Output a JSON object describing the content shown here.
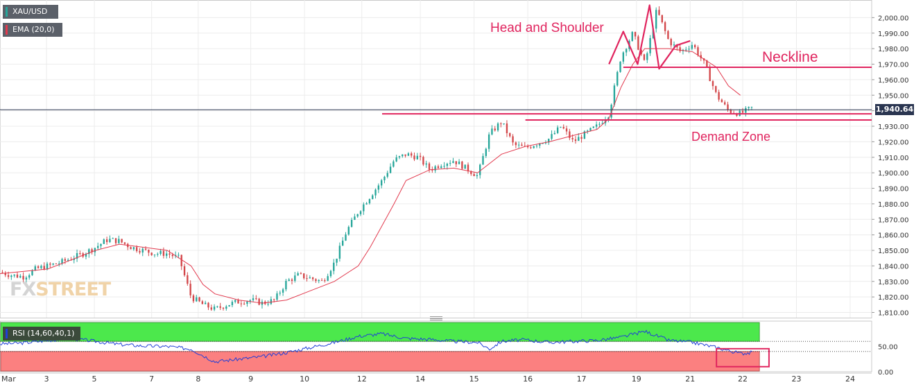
{
  "window": {
    "symbol_label": "XAU/USD",
    "ema_label": "EMA (20,0)",
    "rsi_label": "RSI (14,60,40,1)",
    "current_price_label": "1,940.64",
    "logo_fx": "FX",
    "logo_street": "STREET"
  },
  "colors": {
    "up": "#26a69a",
    "down": "#d3474a",
    "ema": "#e23a4e",
    "annotation": "#e0245e",
    "rsi_line": "#1f3fd8",
    "rsi_upper_zone": "#4ce84c",
    "rsi_lower_zone": "#fb8080",
    "price_line": "#2a3550"
  },
  "annotations": {
    "head_shoulder": "Head and Shoulder",
    "neckline": "Neckline",
    "demand_zone": "Demand Zone"
  },
  "chart_data": [
    {
      "type": "candlestick",
      "title": "XAU/USD",
      "ylim": [
        1808,
        2010
      ],
      "y_ticks": [
        "2,000.00",
        "1,990.00",
        "1,980.00",
        "1,970.00",
        "1,960.00",
        "1,950.00",
        "1,940.00",
        "1,930.00",
        "1,920.00",
        "1,910.00",
        "1,900.00",
        "1,890.00",
        "1,880.00",
        "1,870.00",
        "1,860.00",
        "1,850.00",
        "1,840.00",
        "1,830.00",
        "1,820.00",
        "1,810.00"
      ],
      "y_tick_values": [
        2000,
        1990,
        1980,
        1970,
        1960,
        1950,
        1940,
        1930,
        1920,
        1910,
        1900,
        1890,
        1880,
        1870,
        1860,
        1850,
        1840,
        1830,
        1820,
        1810
      ],
      "x_ticks": [
        "Mar",
        "3",
        "5",
        "7",
        "8",
        "9",
        "10",
        "12",
        "14",
        "15",
        "16",
        "17",
        "19",
        "21",
        "22",
        "23",
        "24"
      ],
      "x_tick_times": [
        0,
        1.95,
        3.95,
        6.35,
        8.3,
        10.5,
        12.75,
        15.15,
        17.6,
        19.85,
        22.1,
        24.35,
        26.65,
        28.9,
        31.1,
        33.35,
        35.6
      ],
      "time_end": 36.5,
      "current_price": 1940.64,
      "key_points": {
        "t": [
          0,
          0.5,
          1,
          1.5,
          2,
          2.5,
          3,
          3.5,
          4,
          4.5,
          5,
          5.5,
          6,
          6.5,
          7,
          7.5,
          8,
          8.5,
          9,
          9.5,
          10,
          10.5,
          11,
          11.5,
          12,
          12.5,
          13,
          13.5,
          14,
          14.5,
          15,
          15.5,
          16,
          16.5,
          17,
          17.5,
          18,
          18.5,
          19,
          19.5,
          20,
          20.5,
          21,
          21.5,
          22,
          22.5,
          23,
          23.5,
          24,
          24.5,
          25,
          25.5,
          26,
          26.5,
          27,
          27.5,
          28,
          28.5,
          29,
          29.5,
          30,
          30.5,
          31,
          31.5
        ],
        "close": [
          1836,
          1834,
          1833,
          1838,
          1840,
          1842,
          1845,
          1848,
          1852,
          1857,
          1856,
          1852,
          1850,
          1848,
          1848,
          1845,
          1820,
          1815,
          1812,
          1815,
          1817,
          1818,
          1816,
          1818,
          1830,
          1834,
          1832,
          1830,
          1842,
          1862,
          1875,
          1885,
          1895,
          1908,
          1912,
          1910,
          1902,
          1906,
          1908,
          1903,
          1898,
          1925,
          1933,
          1918,
          1916,
          1919,
          1922,
          1930,
          1920,
          1925,
          1930,
          1938,
          1975,
          1990,
          1970,
          2005,
          1985,
          1978,
          1983,
          1970,
          1950,
          1940,
          1938,
          1942
        ]
      },
      "ema": {
        "t": [
          0,
          2,
          4,
          5,
          6,
          7,
          8,
          8.5,
          9,
          10,
          11,
          12,
          13,
          14,
          15,
          15.5,
          16,
          16.5,
          17,
          18,
          19,
          20,
          21,
          22,
          23,
          24,
          25,
          25.5,
          26,
          26.5,
          27,
          28,
          29,
          30,
          30.5,
          31
        ],
        "values": [
          1835,
          1838,
          1850,
          1854,
          1852,
          1850,
          1840,
          1828,
          1822,
          1818,
          1816,
          1818,
          1824,
          1830,
          1840,
          1852,
          1866,
          1880,
          1895,
          1902,
          1903,
          1900,
          1912,
          1917,
          1920,
          1924,
          1928,
          1935,
          1955,
          1970,
          1980,
          1980,
          1978,
          1968,
          1956,
          1950
        ]
      },
      "lines": [
        {
          "name": "Neckline",
          "y": 1968,
          "t_start": 26.1,
          "t_end": 36.5
        },
        {
          "name": "Demand Zone upper",
          "y": 1938,
          "t_start": 16.0,
          "t_end": 36.5
        },
        {
          "name": "Demand Zone lower",
          "y": 1934,
          "t_start": 22.0,
          "t_end": 36.5
        }
      ],
      "head_and_shoulder_path": {
        "t": [
          25.5,
          26.1,
          26.7,
          27.2,
          27.6,
          28.3,
          28.9
        ],
        "y": [
          1970,
          1991,
          1970,
          2008,
          1967,
          1982,
          1985
        ]
      }
    },
    {
      "type": "line",
      "title": "RSI (14,60,40,1)",
      "ylim": [
        0,
        100
      ],
      "y_ticks": [
        "50.00",
        "0.00"
      ],
      "y_tick_values": [
        50,
        0
      ],
      "zones": {
        "upper": 60,
        "lower": 40
      },
      "key_points": {
        "t": [
          0,
          1,
          2,
          3,
          4,
          5,
          6,
          7,
          8,
          8.5,
          9,
          10,
          11,
          12,
          13,
          14,
          15,
          16,
          17,
          18,
          19,
          20,
          20.5,
          21,
          21.5,
          22,
          23,
          24,
          25,
          26,
          27,
          28,
          29,
          30,
          30.5,
          31,
          31.5
        ],
        "rsi": [
          55,
          57,
          62,
          66,
          60,
          54,
          51,
          50,
          45,
          32,
          20,
          25,
          30,
          38,
          48,
          58,
          70,
          75,
          66,
          64,
          60,
          58,
          45,
          60,
          62,
          63,
          58,
          60,
          62,
          68,
          80,
          62,
          58,
          48,
          42,
          36,
          38
        ]
      }
    }
  ]
}
